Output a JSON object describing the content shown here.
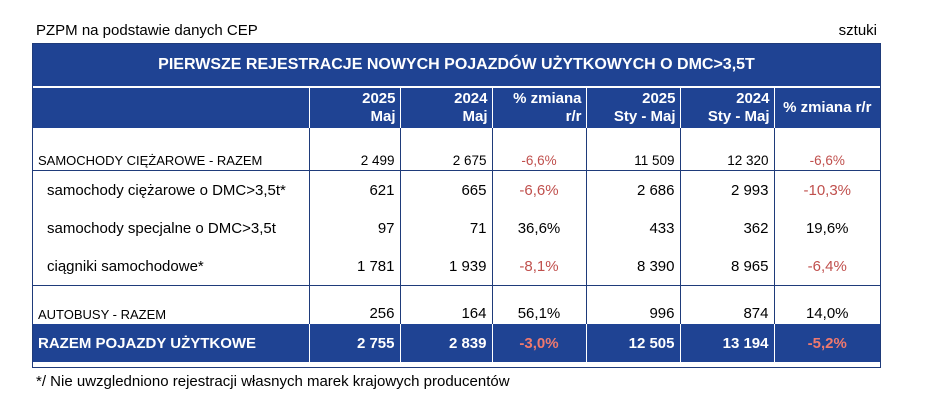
{
  "header": {
    "source": "PZPM na podstawie danych CEP",
    "unit": "sztuki"
  },
  "table": {
    "title": "PIERWSZE REJESTRACJE NOWYCH POJAZDÓW UŻYTKOWYCH O DMC>3,5T",
    "columns": [
      {
        "line1": "",
        "line2": ""
      },
      {
        "line1": "2025",
        "line2": "Maj"
      },
      {
        "line1": "2024",
        "line2": "Maj"
      },
      {
        "line1": "% zmiana",
        "line2": "r/r"
      },
      {
        "line1": "2025",
        "line2": "Sty - Maj"
      },
      {
        "line1": "2024",
        "line2": "Sty - Maj"
      },
      {
        "line1": "% zmiana r/r",
        "line2": ""
      }
    ],
    "rows": [
      {
        "label": "SAMOCHODY CIĘŻAROWE - RAZEM",
        "v2025_maj": "2 499",
        "v2024_maj": "2 675",
        "chg_maj": "-6,6%",
        "v2025_ytd": "11 509",
        "v2024_ytd": "12 320",
        "chg_ytd": "-6,6%"
      },
      {
        "label": "samochody ciężarowe o DMC>3,5t*",
        "v2025_maj": "621",
        "v2024_maj": "665",
        "chg_maj": "-6,6%",
        "v2025_ytd": "2 686",
        "v2024_ytd": "2 993",
        "chg_ytd": "-10,3%"
      },
      {
        "label": "samochody specjalne o DMC>3,5t",
        "v2025_maj": "97",
        "v2024_maj": "71",
        "chg_maj": "36,6%",
        "v2025_ytd": "433",
        "v2024_ytd": "362",
        "chg_ytd": "19,6%"
      },
      {
        "label": "ciągniki samochodowe*",
        "v2025_maj": "1 781",
        "v2024_maj": "1 939",
        "chg_maj": "-8,1%",
        "v2025_ytd": "8 390",
        "v2024_ytd": "8 965",
        "chg_ytd": "-6,4%"
      },
      {
        "label": "AUTOBUSY - RAZEM",
        "v2025_maj": "256",
        "v2024_maj": "164",
        "chg_maj": "56,1%",
        "v2025_ytd": "996",
        "v2024_ytd": "874",
        "chg_ytd": "14,0%"
      },
      {
        "label": "RAZEM POJAZDY UŻYTKOWE",
        "v2025_maj": "2 755",
        "v2024_maj": "2 839",
        "chg_maj": "-3,0%",
        "v2025_ytd": "12 505",
        "v2024_ytd": "13 194",
        "chg_ytd": "-5,2%"
      }
    ]
  },
  "colors": {
    "header_bg": "#1f4393",
    "negative": "#c0504d"
  },
  "footnote": "*/ Nie uwzgledniono rejestracji własnych marek krajowych producentów"
}
